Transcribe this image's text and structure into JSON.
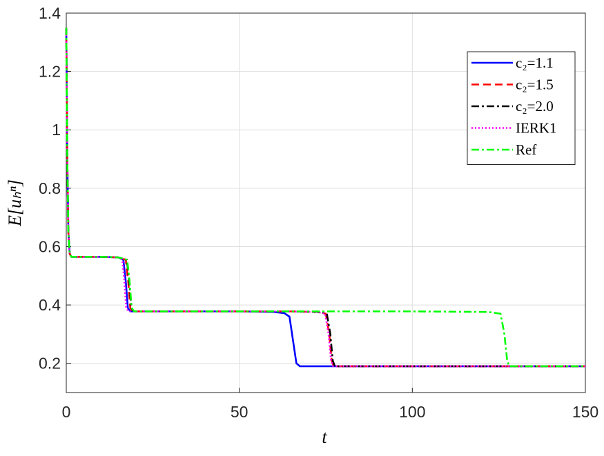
{
  "chart_data": {
    "type": "line",
    "xlabel": "t",
    "ylabel": "E[uₕⁿ]",
    "xlim": [
      0,
      150
    ],
    "ylim": [
      0.1,
      1.4
    ],
    "xticks": [
      0,
      50,
      100,
      150
    ],
    "yticks": [
      0.2,
      0.4,
      0.6,
      0.8,
      1,
      1.2,
      1.4
    ],
    "grid": true,
    "legend": "upper-right",
    "series": [
      {
        "name": "c₂=1.1",
        "color": "#0000ff",
        "dash": "solid",
        "x": [
          0,
          0.3,
          0.6,
          1,
          1.5,
          10,
          15,
          16.5,
          17.2,
          17.8,
          18.5,
          30,
          50,
          60,
          63,
          64.5,
          65.5,
          66.5,
          67.5,
          80,
          150
        ],
        "values": [
          1.35,
          0.9,
          0.65,
          0.575,
          0.565,
          0.565,
          0.563,
          0.555,
          0.48,
          0.39,
          0.378,
          0.378,
          0.378,
          0.376,
          0.372,
          0.36,
          0.28,
          0.2,
          0.19,
          0.19,
          0.19
        ]
      },
      {
        "name": "c₂=1.5",
        "color": "#ff0000",
        "dash": "dashed",
        "x": [
          0,
          0.3,
          0.6,
          1,
          1.5,
          10,
          15,
          17.2,
          17.9,
          18.5,
          19.2,
          30,
          50,
          65,
          73,
          75,
          76,
          76.7,
          77.3,
          90,
          150
        ],
        "values": [
          1.35,
          0.9,
          0.65,
          0.575,
          0.565,
          0.565,
          0.563,
          0.555,
          0.48,
          0.39,
          0.378,
          0.378,
          0.378,
          0.378,
          0.376,
          0.37,
          0.3,
          0.21,
          0.19,
          0.19,
          0.19
        ]
      },
      {
        "name": "c₂=2.0",
        "color": "#000000",
        "dash": "dashdot",
        "x": [
          0,
          0.3,
          0.6,
          1,
          1.5,
          10,
          15,
          17.5,
          18.2,
          18.8,
          19.5,
          30,
          50,
          65,
          73,
          75.3,
          76.3,
          77,
          77.6,
          90,
          150
        ],
        "values": [
          1.35,
          0.9,
          0.65,
          0.575,
          0.565,
          0.565,
          0.563,
          0.555,
          0.48,
          0.39,
          0.378,
          0.378,
          0.378,
          0.378,
          0.376,
          0.37,
          0.3,
          0.21,
          0.19,
          0.19,
          0.19
        ]
      },
      {
        "name": "IERK1",
        "color": "#ff00ff",
        "dash": "dotted",
        "x": [
          0,
          0.3,
          0.6,
          1,
          1.5,
          10,
          15,
          16.2,
          16.8,
          17.3,
          18,
          30,
          50,
          65,
          72.5,
          74.8,
          75.8,
          76.5,
          77.1,
          90,
          150
        ],
        "values": [
          1.35,
          0.9,
          0.65,
          0.575,
          0.565,
          0.565,
          0.563,
          0.555,
          0.48,
          0.39,
          0.378,
          0.378,
          0.378,
          0.378,
          0.376,
          0.37,
          0.3,
          0.21,
          0.19,
          0.19,
          0.19
        ]
      },
      {
        "name": "Ref",
        "color": "#00ff00",
        "dash": "dashdot",
        "x": [
          0,
          0.3,
          0.6,
          1,
          1.5,
          10,
          15,
          17.6,
          18.3,
          18.9,
          19.6,
          30,
          50,
          100,
          122,
          125.5,
          126.6,
          127.4,
          128,
          140,
          150
        ],
        "values": [
          1.35,
          0.9,
          0.65,
          0.575,
          0.565,
          0.565,
          0.563,
          0.555,
          0.48,
          0.39,
          0.378,
          0.378,
          0.378,
          0.378,
          0.376,
          0.37,
          0.3,
          0.21,
          0.19,
          0.19,
          0.19
        ]
      }
    ]
  }
}
